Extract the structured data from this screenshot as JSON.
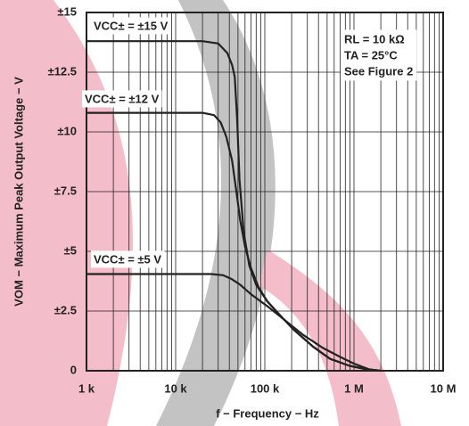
{
  "chart_data": {
    "type": "line",
    "x_label": "f − Frequency − Hz",
    "y_label": "VOM − Maximum Peak Output Voltage − V",
    "annotations": [
      "RL = 10 kΩ",
      "TA = 25°C",
      "See Figure 2"
    ],
    "log_x": true,
    "grid": true,
    "xlim": [
      1000,
      10000000
    ],
    "ylim": [
      0,
      15
    ],
    "xticks": [
      {
        "value": 1000,
        "label": "1 k"
      },
      {
        "value": 10000,
        "label": "10 k"
      },
      {
        "value": 100000,
        "label": "100 k"
      },
      {
        "value": 1000000,
        "label": "1 M"
      },
      {
        "value": 10000000,
        "label": "10 M"
      }
    ],
    "xminorticks": [
      2000,
      3000,
      4000,
      5000,
      6000,
      7000,
      8000,
      9000,
      20000,
      30000,
      40000,
      50000,
      60000,
      70000,
      80000,
      90000,
      200000,
      300000,
      400000,
      500000,
      600000,
      700000,
      800000,
      900000,
      2000000,
      3000000,
      4000000,
      5000000,
      6000000,
      7000000,
      8000000,
      9000000
    ],
    "yticks": [
      0,
      {
        "value": 2.5,
        "label": "±2.5"
      },
      {
        "value": 5,
        "label": "±5"
      },
      {
        "value": 7.5,
        "label": "±7.5"
      },
      {
        "value": 10,
        "label": "±10"
      },
      {
        "value": 12.5,
        "label": "±12.5"
      },
      {
        "value": 15,
        "label": "±15"
      }
    ],
    "series": [
      {
        "name": "VCC± = ±15 V",
        "color": "#222222",
        "x": [
          1000,
          20000,
          30000,
          38000,
          43000,
          46000,
          49000,
          52000,
          58000,
          67000,
          80000,
          107000,
          150000,
          214000,
          350000,
          540000,
          900000,
          1350000,
          2000000
        ],
        "values": [
          13.8,
          13.8,
          13.7,
          13.3,
          12.8,
          12.3,
          10.5,
          8.0,
          5.8,
          4.4,
          3.6,
          2.9,
          2.3,
          1.7,
          1.0,
          0.5,
          0.2,
          0.07,
          0
        ]
      },
      {
        "name": "VCC± = ±12 V",
        "color": "#222222",
        "x": [
          1000,
          20000,
          27000,
          32000,
          37000,
          43000,
          48000,
          53000,
          60000,
          70000,
          85000,
          107000,
          150000,
          214000,
          350000,
          540000,
          900000,
          1350000,
          2000000
        ],
        "values": [
          10.8,
          10.8,
          10.7,
          10.4,
          9.8,
          8.8,
          7.5,
          6.3,
          5.2,
          4.3,
          3.5,
          2.9,
          2.3,
          1.7,
          1.0,
          0.5,
          0.2,
          0.07,
          0
        ]
      },
      {
        "name": "VCC± = ±5 V",
        "color": "#222222",
        "x": [
          1000,
          25000,
          34000,
          42000,
          53000,
          70000,
          107000,
          170000,
          270000,
          450000,
          680000,
          1000000,
          1500000,
          2000000
        ],
        "values": [
          4.05,
          4.05,
          4.0,
          3.85,
          3.6,
          3.2,
          2.7,
          2.1,
          1.5,
          0.95,
          0.6,
          0.3,
          0.05,
          0
        ]
      }
    ]
  }
}
